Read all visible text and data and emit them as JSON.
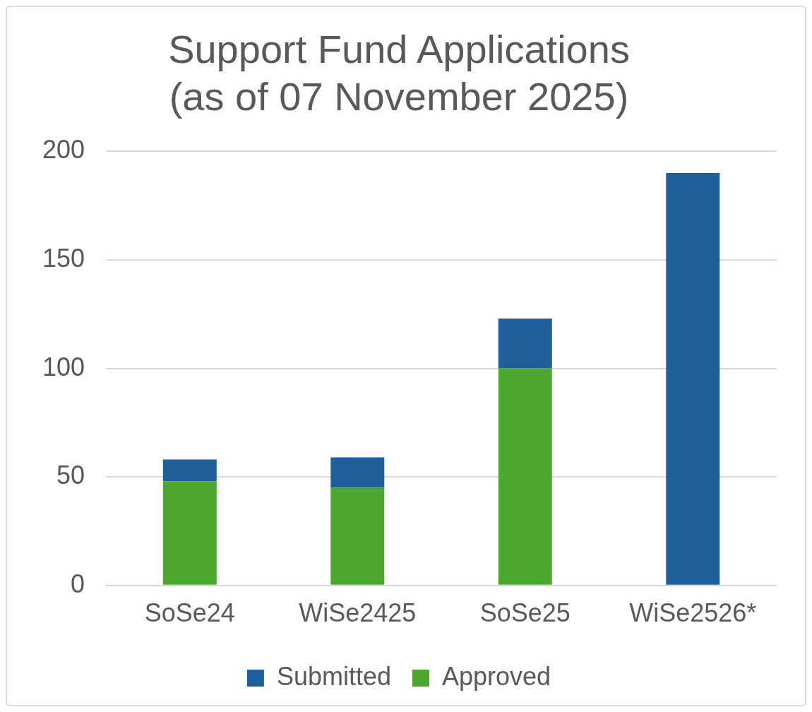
{
  "chart_data": {
    "type": "bar",
    "title": "Support Fund Applications\n(as of 07 November 2025)",
    "categories": [
      "SoSe24",
      "WiSe2425",
      "SoSe25",
      "WiSe2526*"
    ],
    "stacked": true,
    "series": [
      {
        "name": "Approved",
        "color": "#4ea72e",
        "values": [
          48,
          45,
          100,
          0
        ]
      },
      {
        "name": "Submitted",
        "color": "#1f5f9b",
        "values": [
          10,
          14,
          23,
          190
        ]
      }
    ],
    "ylim": [
      0,
      200
    ],
    "yticks": [
      0,
      50,
      100,
      150,
      200
    ],
    "grid": "y",
    "legend": "bottom"
  }
}
